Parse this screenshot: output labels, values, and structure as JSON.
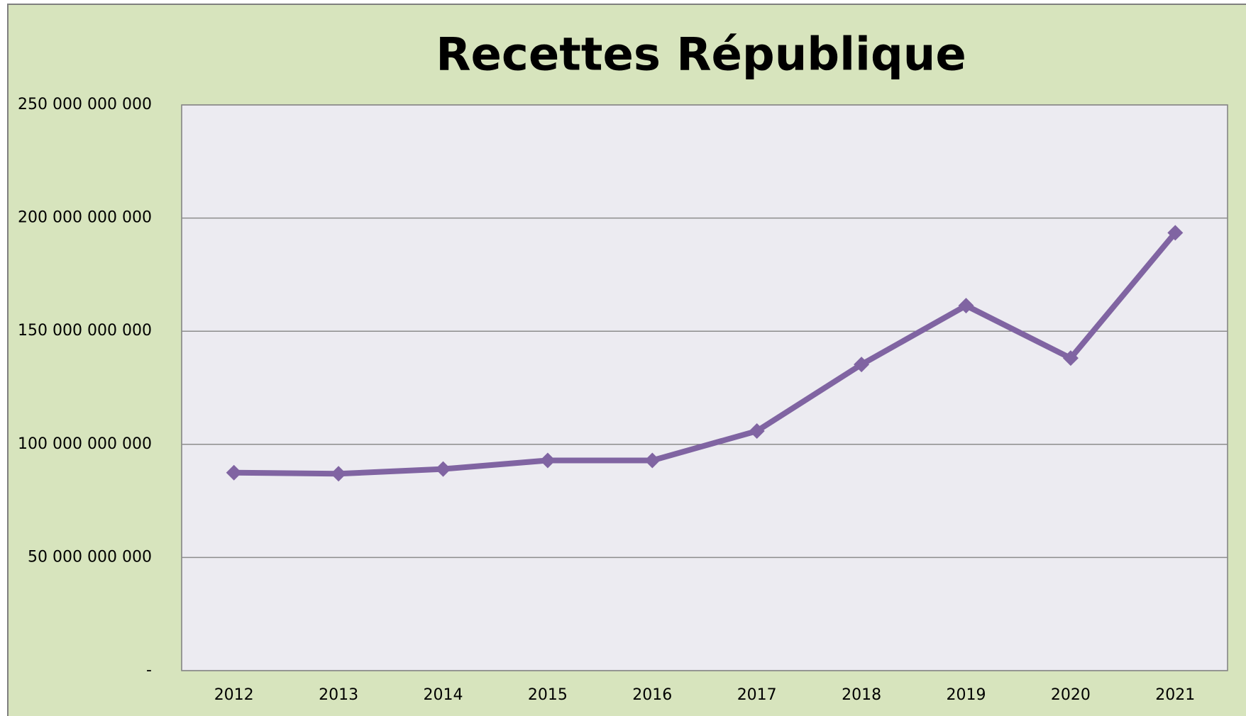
{
  "chart_data": {
    "type": "line",
    "title": "Recettes République",
    "categories": [
      "2012",
      "2013",
      "2014",
      "2015",
      "2016",
      "2017",
      "2018",
      "2019",
      "2020",
      "2021"
    ],
    "series": [
      {
        "name": "Recettes",
        "color": "#8064a2",
        "values": [
          87500000000,
          87000000000,
          89100000000,
          92900000000,
          92900000000,
          105900000000,
          135300000000,
          161300000000,
          138100000000,
          193500000000
        ]
      }
    ],
    "ylim": [
      0,
      250000000000
    ],
    "yticks": [
      {
        "value": 0,
        "label": "-"
      },
      {
        "value": 50000000000,
        "label": "50 000 000 000"
      },
      {
        "value": 100000000000,
        "label": "100 000 000 000"
      },
      {
        "value": 150000000000,
        "label": "150 000 000 000"
      },
      {
        "value": 200000000000,
        "label": "200 000 000 000"
      },
      {
        "value": 250000000000,
        "label": "250 000 000 000"
      }
    ],
    "grid": true
  }
}
